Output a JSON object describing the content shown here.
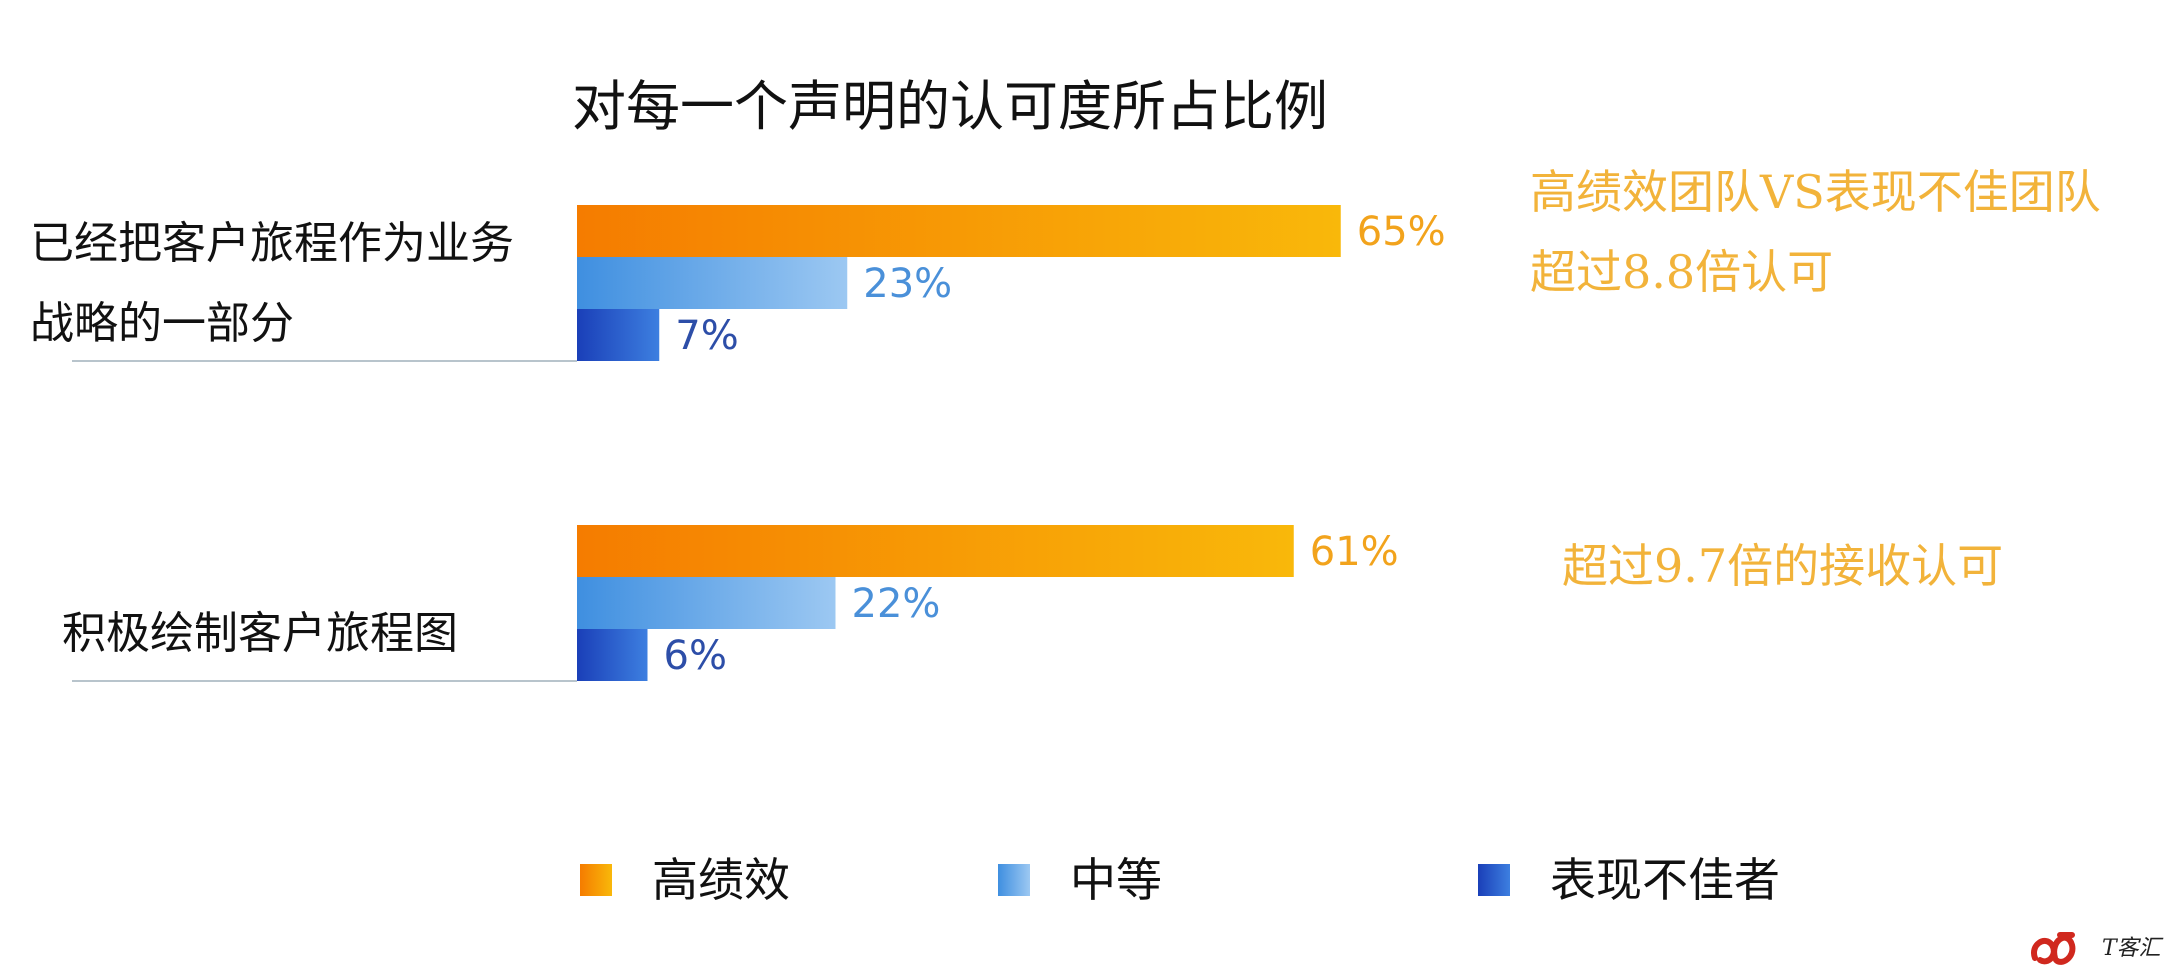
{
  "chart_data": {
    "type": "bar",
    "orientation": "horizontal",
    "title": "对每一个声明的认可度所占比例",
    "categories": [
      {
        "lines": [
          "已经把客户旅程作为业务",
          "战略的一部分"
        ]
      },
      {
        "lines": [
          "积极绘制客户旅程图"
        ]
      }
    ],
    "series": [
      {
        "name": "高绩效",
        "values": [
          65,
          61
        ],
        "labels": [
          "65%",
          "61%"
        ],
        "color_start": "#f57c00",
        "color_end": "#f9b80a",
        "label_color": "#f2a31c"
      },
      {
        "name": "中等",
        "values": [
          23,
          22
        ],
        "labels": [
          "23%",
          "22%"
        ],
        "color_start": "#3f8fe0",
        "color_end": "#9cc8f2",
        "label_color": "#4a90d9"
      },
      {
        "name": "表现不佳者",
        "values": [
          7,
          6
        ],
        "labels": [
          "7%",
          "6%"
        ],
        "color_start": "#1a3fb8",
        "color_end": "#3d7fe0",
        "label_color": "#2d4ea8"
      }
    ],
    "annotations": [
      {
        "lines": [
          "高绩效团队VS表现不佳团队",
          "超过8.8倍认可"
        ],
        "color": "#f2b33a"
      },
      {
        "lines": [
          "超过9.7倍的接收认可"
        ],
        "color": "#f2b33a"
      }
    ],
    "xlim": [
      0,
      100
    ],
    "grid": false,
    "legend_position": "bottom"
  },
  "watermark": {
    "text": "T客汇"
  }
}
